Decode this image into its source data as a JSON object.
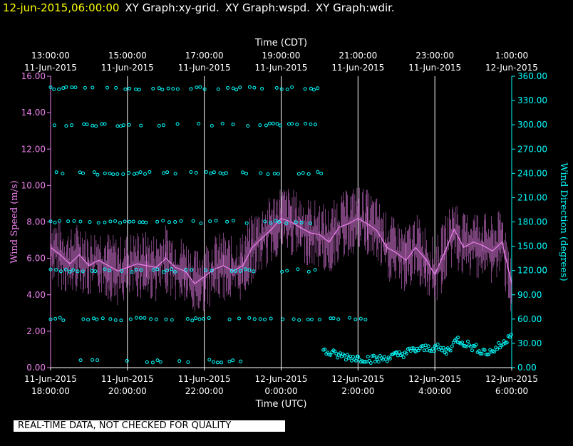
{
  "header": {
    "timestamp": "12-jun-2015,06:00:00",
    "graph_titles": [
      "XY Graph:xy-grid.",
      "XY Graph:wspd.",
      "XY Graph:wdir."
    ]
  },
  "notice": "REAL-TIME DATA, NOT CHECKED FOR QUALITY",
  "colors": {
    "wspd": "#ee82ee",
    "wdir": "#00ffff",
    "header": "#ffff00",
    "grid": "#ffffff"
  },
  "chart_data": {
    "type": "line",
    "top_axis": {
      "label": "Time (CDT)",
      "ticks": [
        {
          "x": 0,
          "l1": "13:00:00",
          "l2": "11-Jun-2015"
        },
        {
          "x": 2,
          "l1": "15:00:00",
          "l2": "11-Jun-2015"
        },
        {
          "x": 4,
          "l1": "17:00:00",
          "l2": "11-Jun-2015"
        },
        {
          "x": 6,
          "l1": "19:00:00",
          "l2": "11-Jun-2015"
        },
        {
          "x": 8,
          "l1": "21:00:00",
          "l2": "11-Jun-2015"
        },
        {
          "x": 10,
          "l1": "23:00:00",
          "l2": "11-Jun-2015"
        },
        {
          "x": 12,
          "l1": "1:00:00",
          "l2": "12-Jun-2015"
        }
      ]
    },
    "bottom_axis": {
      "label": "Time (UTC)",
      "ticks": [
        {
          "x": 0,
          "l1": "11-Jun-2015",
          "l2": "18:00:00"
        },
        {
          "x": 2,
          "l1": "11-Jun-2015",
          "l2": "20:00:00"
        },
        {
          "x": 4,
          "l1": "11-Jun-2015",
          "l2": "22:00:00"
        },
        {
          "x": 6,
          "l1": "12-Jun-2015",
          "l2": "0:00:00"
        },
        {
          "x": 8,
          "l1": "12-Jun-2015",
          "l2": "2:00:00"
        },
        {
          "x": 10,
          "l1": "12-Jun-2015",
          "l2": "4:00:00"
        },
        {
          "x": 12,
          "l1": "12-Jun-2015",
          "l2": "6:00:00"
        }
      ]
    },
    "xlim": [
      0,
      12
    ],
    "left_axis": {
      "label": "Wind Speed (m/s)",
      "ylim": [
        0,
        16
      ],
      "ticks": [
        "0.00",
        "2.00",
        "4.00",
        "6.00",
        "8.00",
        "10.00",
        "12.00",
        "14.00",
        "16.00"
      ]
    },
    "right_axis": {
      "label": "Wind Direction (degrees)",
      "ylim": [
        0,
        360
      ],
      "ticks": [
        "0.00",
        "30.00",
        "60.00",
        "90.00",
        "120.00",
        "150.00",
        "180.00",
        "210.00",
        "240.00",
        "270.00",
        "300.00",
        "330.00",
        "360.00"
      ]
    },
    "grid": "vertical",
    "series": [
      {
        "kind": "line",
        "axis": "left",
        "x": [
          0,
          0.25,
          0.5,
          0.75,
          1,
          1.25,
          1.5,
          1.75,
          2,
          2.25,
          2.5,
          2.75,
          3,
          3.25,
          3.5,
          3.75,
          4,
          4.25,
          4.5,
          4.75,
          5,
          5.25,
          5.5,
          5.75,
          6,
          6.25,
          6.5,
          6.75,
          7,
          7.25,
          7.5,
          7.75,
          8,
          8.25,
          8.5,
          8.75,
          9,
          9.25,
          9.5,
          9.75,
          10,
          10.25,
          10.5,
          10.75,
          11,
          11.25,
          11.5,
          11.75,
          12
        ],
        "values": [
          6.6,
          6.2,
          5.7,
          6.2,
          5.6,
          5.9,
          5.6,
          5.3,
          5.5,
          5.7,
          5.6,
          5.5,
          6.0,
          5.5,
          5.3,
          4.6,
          5.0,
          5.4,
          5.6,
          5.3,
          5.6,
          6.6,
          7.1,
          7.6,
          8.2,
          8.0,
          7.7,
          7.4,
          7.3,
          6.9,
          7.7,
          7.9,
          8.2,
          7.9,
          7.5,
          6.6,
          6.3,
          5.9,
          6.6,
          6.0,
          5.1,
          6.3,
          7.6,
          6.6,
          6.9,
          6.7,
          6.4,
          6.9,
          4.6
        ]
      },
      {
        "kind": "scatter",
        "axis": "right",
        "bands": [
          {
            "value": 345,
            "x_from": 0,
            "x_to": 7.0
          },
          {
            "value": 300,
            "x_from": 0,
            "x_to": 7.0
          },
          {
            "value": 240,
            "x_from": 0,
            "x_to": 7.1
          },
          {
            "value": 180,
            "x_from": 0,
            "x_to": 7.1
          },
          {
            "value": 120,
            "x_from": 0,
            "x_to": 7.0
          },
          {
            "value": 60,
            "x_from": 0,
            "x_to": 8.3
          },
          {
            "value": 8,
            "x_from": 0.7,
            "x_to": 5.1
          }
        ],
        "trend": {
          "x": [
            7.1,
            7.5,
            8.0,
            8.5,
            9.0,
            9.5,
            10.0,
            10.3,
            10.6,
            11.0,
            11.4,
            11.8,
            12.0
          ],
          "values": [
            20,
            15,
            12,
            10,
            15,
            22,
            25,
            20,
            35,
            25,
            18,
            30,
            45
          ]
        }
      }
    ]
  }
}
